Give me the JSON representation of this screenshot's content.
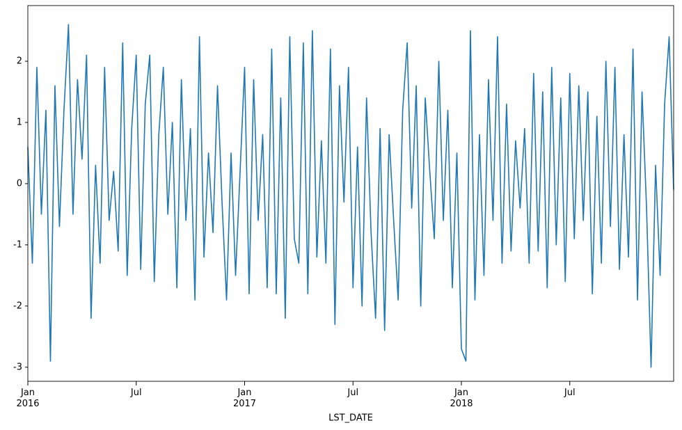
{
  "chart_data": {
    "type": "line",
    "xlabel": "LST_DATE",
    "color": "#1f77b4",
    "categories": [
      "Jan\n2016",
      null,
      null,
      null,
      null,
      null,
      null,
      null,
      null,
      null,
      null,
      null,
      null,
      null,
      null,
      null,
      null,
      null,
      null,
      null,
      null,
      null,
      null,
      null,
      "Jul",
      null,
      null,
      null,
      null,
      null,
      null,
      null,
      null,
      null,
      null,
      null,
      null,
      null,
      null,
      null,
      null,
      null,
      null,
      null,
      null,
      null,
      null,
      null,
      "Jan\n2017",
      null,
      null,
      null,
      null,
      null,
      null,
      null,
      null,
      null,
      null,
      null,
      null,
      null,
      null,
      null,
      null,
      null,
      null,
      null,
      null,
      null,
      null,
      null,
      "Jul",
      null,
      null,
      null,
      null,
      null,
      null,
      null,
      null,
      null,
      null,
      null,
      null,
      null,
      null,
      null,
      null,
      null,
      null,
      null,
      null,
      null,
      null,
      null,
      "Jan\n2018",
      null,
      null,
      null,
      null,
      null,
      null,
      null,
      null,
      null,
      null,
      null,
      null,
      null,
      null,
      null,
      null,
      null,
      null,
      null,
      null,
      null,
      null,
      null,
      "Jul",
      null,
      null,
      null,
      null,
      null,
      null,
      null,
      null,
      null,
      null,
      null,
      null,
      null,
      null,
      null,
      null,
      null,
      null,
      null,
      null,
      null,
      null,
      null
    ],
    "values": [
      0.6,
      -1.3,
      1.9,
      -0.5,
      1.2,
      -2.9,
      1.6,
      -0.7,
      1.2,
      2.6,
      -0.5,
      1.7,
      0.4,
      2.1,
      -2.2,
      0.3,
      -1.3,
      1.9,
      -0.6,
      0.2,
      -1.1,
      2.3,
      -1.5,
      0.9,
      2.1,
      -1.4,
      1.3,
      2.1,
      -1.6,
      0.8,
      1.9,
      -0.5,
      1.0,
      -1.7,
      1.7,
      -0.6,
      0.9,
      -1.9,
      2.4,
      -1.2,
      0.5,
      -0.8,
      1.6,
      -0.3,
      -1.9,
      0.5,
      -1.5,
      0.2,
      1.9,
      -1.8,
      1.7,
      -0.6,
      0.8,
      -1.7,
      2.2,
      -1.8,
      1.4,
      -2.2,
      2.4,
      -0.9,
      -1.3,
      2.3,
      -1.8,
      2.5,
      -1.2,
      0.7,
      -1.3,
      2.2,
      -2.3,
      1.6,
      -0.3,
      1.9,
      -1.7,
      0.6,
      -2.0,
      1.4,
      -0.8,
      -2.2,
      0.9,
      -2.4,
      0.8,
      -0.6,
      -1.9,
      1.2,
      2.3,
      -0.4,
      1.6,
      -2.0,
      1.4,
      0.2,
      -0.9,
      2.0,
      -0.6,
      1.2,
      -1.7,
      0.5,
      -2.7,
      -2.9,
      2.5,
      -1.9,
      0.8,
      -1.5,
      1.7,
      -0.6,
      2.4,
      -1.3,
      1.3,
      -1.1,
      0.7,
      -0.4,
      0.9,
      -1.3,
      1.8,
      -1.1,
      1.5,
      -1.7,
      1.9,
      -1.0,
      1.4,
      -1.6,
      1.8,
      -0.9,
      1.6,
      -0.6,
      1.5,
      -1.8,
      1.1,
      -1.3,
      2.0,
      -0.7,
      1.9,
      -1.4,
      0.8,
      -1.2,
      2.2,
      -1.9,
      1.5,
      -0.4,
      -3.0,
      0.3,
      -1.5,
      1.3,
      2.4,
      -0.1
    ],
    "ylim": [
      -3.23,
      2.91
    ],
    "yticks": [
      -3,
      -2,
      -1,
      0,
      1,
      2
    ]
  }
}
